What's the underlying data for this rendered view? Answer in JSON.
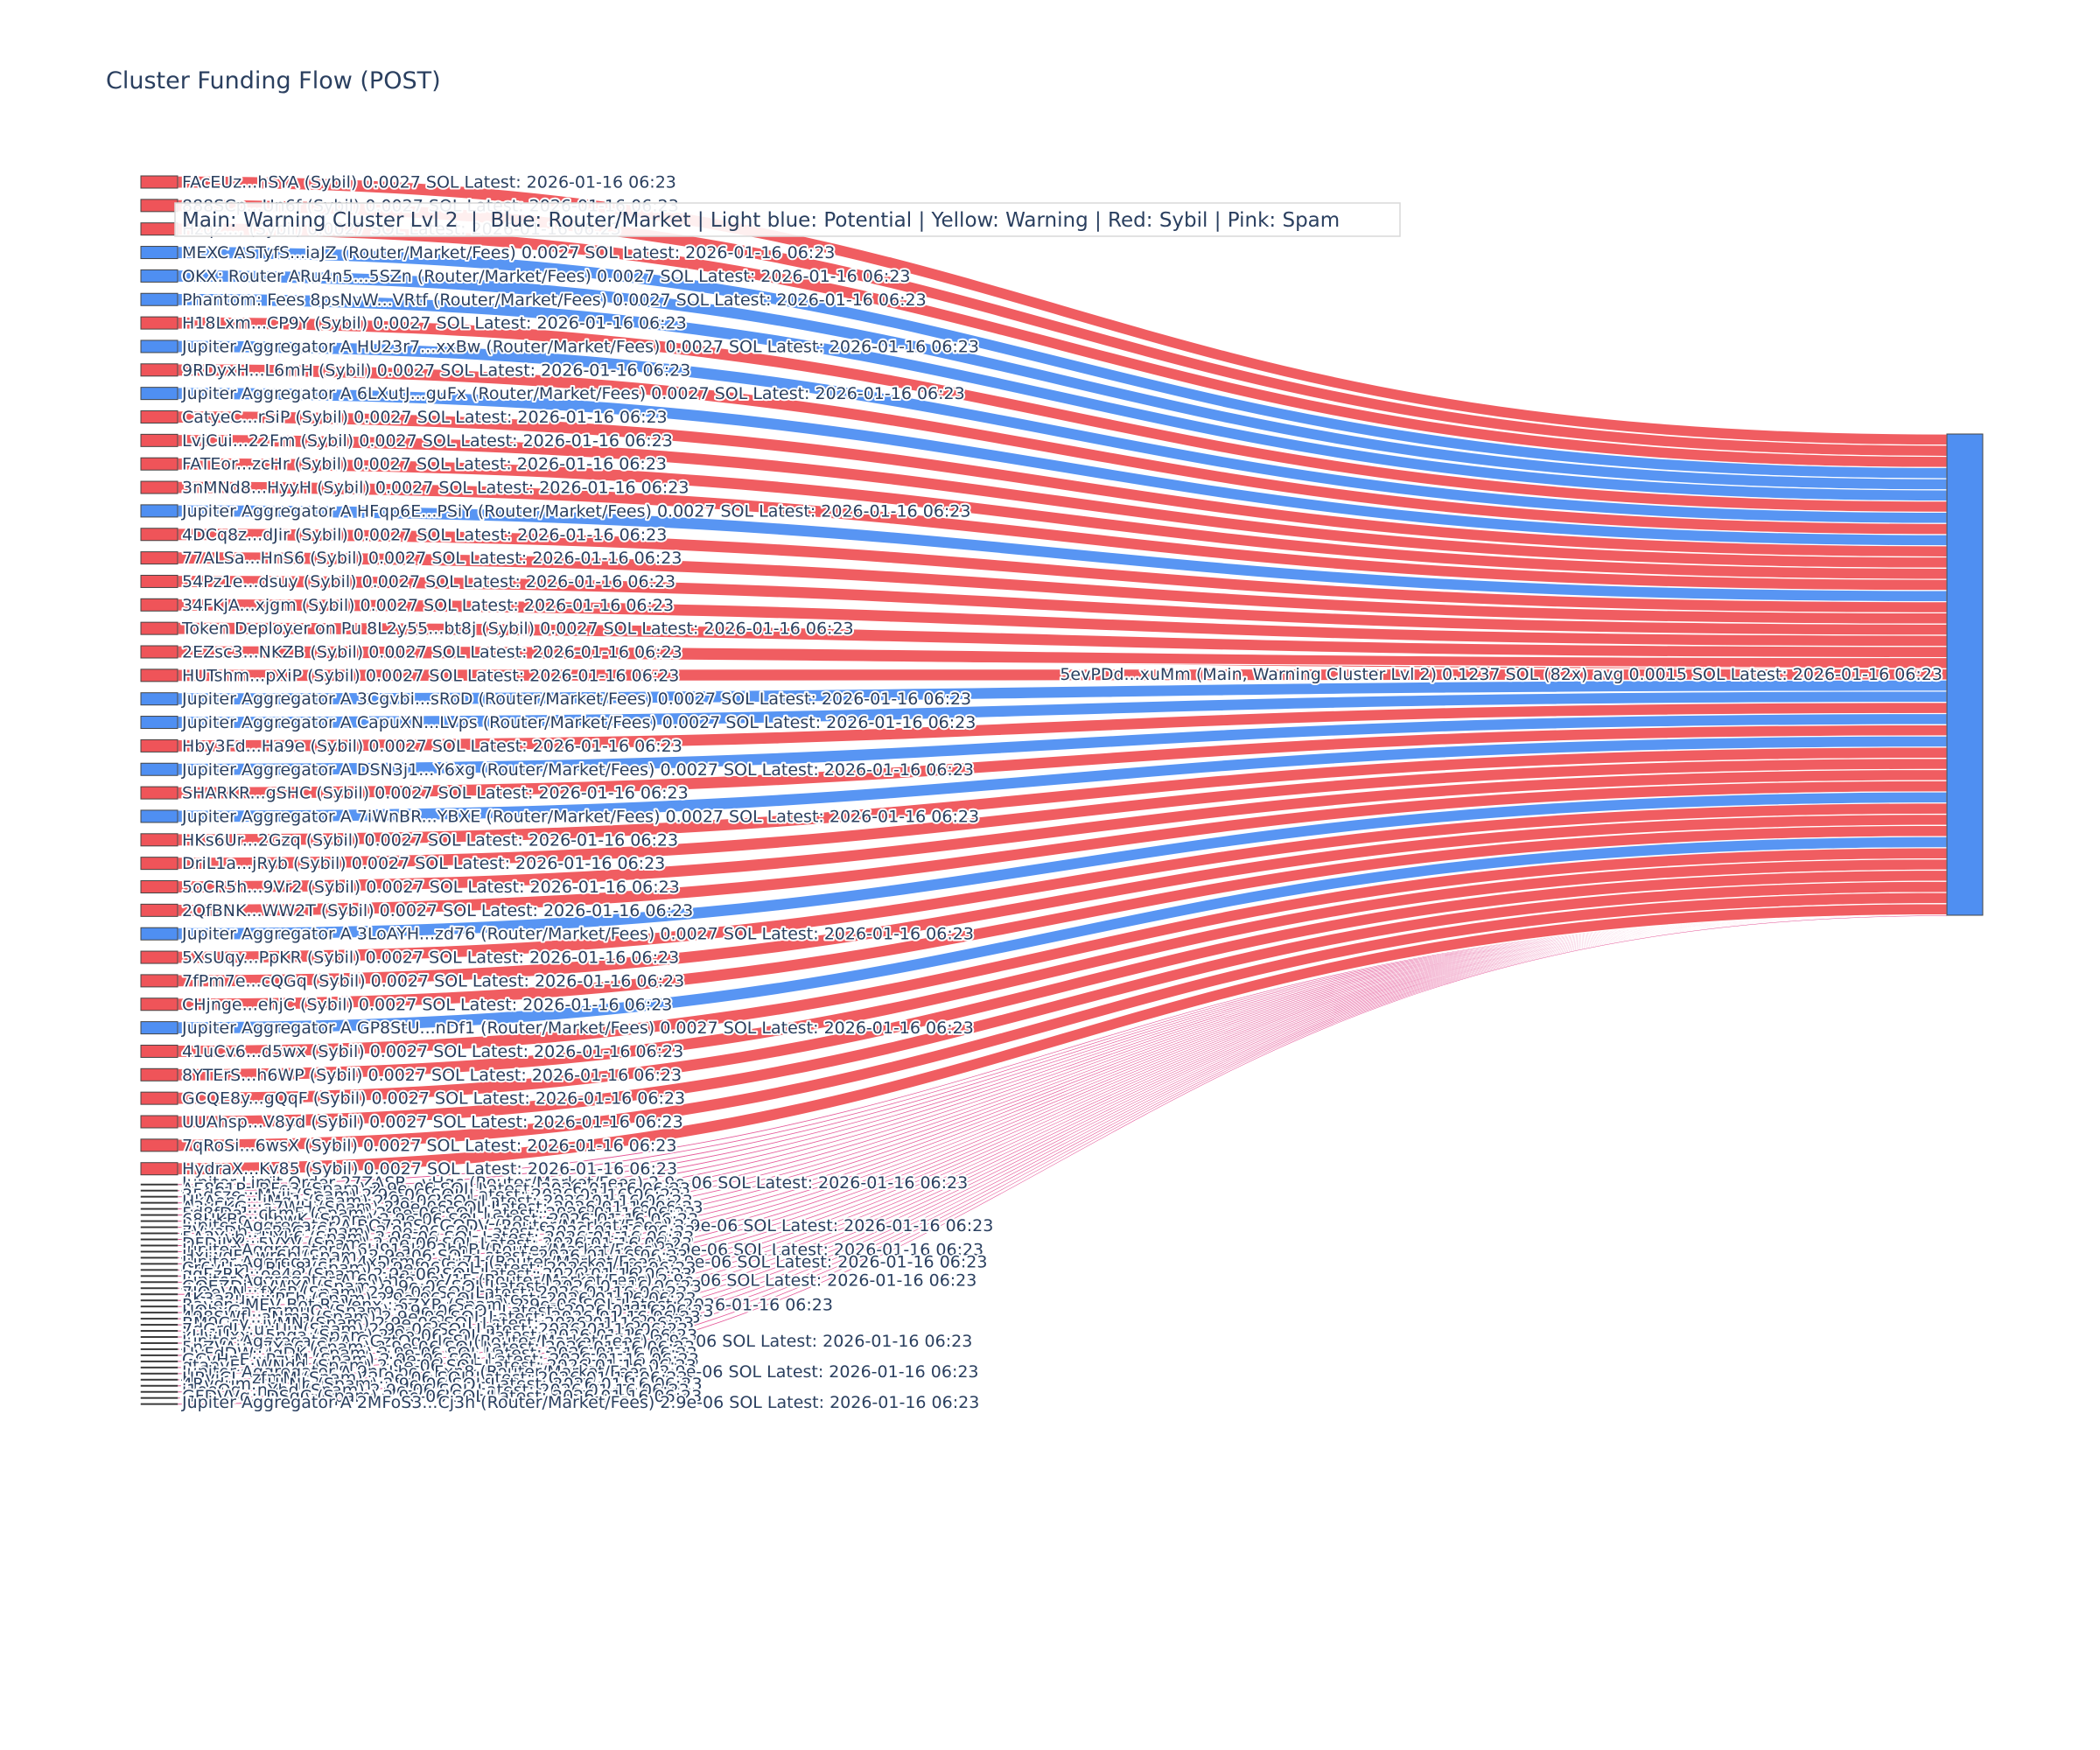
{
  "chart_data": {
    "type": "sankey",
    "title": "Cluster Funding Flow (POST)",
    "legend_note": "Main: Warning Cluster Lvl 2  |  Blue: Router/Market | Light blue: Potential | Yellow: Warning | Red: Sybil | Pink: Spam",
    "colors": {
      "sybil": "#ef5459",
      "router": "#4f8ff2",
      "spam": "#e0408a",
      "main": "#4f8ff2"
    },
    "target": {
      "label": "5evPDd...xuMm (Main, Warning Cluster Lvl 2) 0.1237 SOL (82x) avg 0.0015 SOL Latest: 2026-01-16 06:23",
      "value": 0.1237,
      "transfers": 82
    },
    "sources": [
      {
        "label": "FAcEUz...hSYA (Sybil) 0.0027 SOL Latest: 2026-01-16 06:23",
        "type": "sybil",
        "value": 0.0027
      },
      {
        "label": "888SCp...Un6f (Sybil) 0.0027 SOL Latest: 2026-01-16 06:23",
        "type": "sybil",
        "value": 0.0027
      },
      {
        "label": "Hzqz..., (Sybil) 0.0027 SOL Latest: 2026-01-16 06:23",
        "type": "sybil",
        "value": 0.0027
      },
      {
        "label": "MEXC ASTyfS...iaJZ (Router/Market/Fees) 0.0027 SOL Latest: 2026-01-16 06:23",
        "type": "router",
        "value": 0.0027
      },
      {
        "label": "OKX: Router ARu4n5...5SZn (Router/Market/Fees) 0.0027 SOL Latest: 2026-01-16 06:23",
        "type": "router",
        "value": 0.0027
      },
      {
        "label": "Phantom: Fees 8psNvW...VRtf (Router/Market/Fees) 0.0027 SOL Latest: 2026-01-16 06:23",
        "type": "router",
        "value": 0.0027
      },
      {
        "label": "H18Lxm...CP9Y (Sybil) 0.0027 SOL Latest: 2026-01-16 06:23",
        "type": "sybil",
        "value": 0.0027
      },
      {
        "label": "Jupiter Aggregator A HU23r7...xxBw (Router/Market/Fees) 0.0027 SOL Latest: 2026-01-16 06:23",
        "type": "router",
        "value": 0.0027
      },
      {
        "label": "9RDyxH...L6mH (Sybil) 0.0027 SOL Latest: 2026-01-16 06:23",
        "type": "sybil",
        "value": 0.0027
      },
      {
        "label": "Jupiter Aggregator A 6LXutJ...guFx (Router/Market/Fees) 0.0027 SOL Latest: 2026-01-16 06:23",
        "type": "router",
        "value": 0.0027
      },
      {
        "label": "CatyeC...rSiP (Sybil) 0.0027 SOL Latest: 2026-01-16 06:23",
        "type": "sybil",
        "value": 0.0027
      },
      {
        "label": "LvjCui...22Fm (Sybil) 0.0027 SOL Latest: 2026-01-16 06:23",
        "type": "sybil",
        "value": 0.0027
      },
      {
        "label": "FATEor...zcHr (Sybil) 0.0027 SOL Latest: 2026-01-16 06:23",
        "type": "sybil",
        "value": 0.0027
      },
      {
        "label": "3nMNd8...HyyH (Sybil) 0.0027 SOL Latest: 2026-01-16 06:23",
        "type": "sybil",
        "value": 0.0027
      },
      {
        "label": "Jupiter Aggregator A HFqp6E...PSiY (Router/Market/Fees) 0.0027 SOL Latest: 2026-01-16 06:23",
        "type": "router",
        "value": 0.0027
      },
      {
        "label": "4DCq8z...dJir (Sybil) 0.0027 SOL Latest: 2026-01-16 06:23",
        "type": "sybil",
        "value": 0.0027
      },
      {
        "label": "77ALSa...HnS6 (Sybil) 0.0027 SOL Latest: 2026-01-16 06:23",
        "type": "sybil",
        "value": 0.0027
      },
      {
        "label": "54Pz1e...dsuy (Sybil) 0.0027 SOL Latest: 2026-01-16 06:23",
        "type": "sybil",
        "value": 0.0027
      },
      {
        "label": "34FKjA...xjgm (Sybil) 0.0027 SOL Latest: 2026-01-16 06:23",
        "type": "sybil",
        "value": 0.0027
      },
      {
        "label": "Token Deployer on Pu 8L2y55...bt8j (Sybil) 0.0027 SOL Latest: 2026-01-16 06:23",
        "type": "sybil",
        "value": 0.0027
      },
      {
        "label": "2EZsc3...NKZB (Sybil) 0.0027 SOL Latest: 2026-01-16 06:23",
        "type": "sybil",
        "value": 0.0027
      },
      {
        "label": "HUTshm...pXiP (Sybil) 0.0027 SOL Latest: 2026-01-16 06:23",
        "type": "sybil",
        "value": 0.0027
      },
      {
        "label": "Jupiter Aggregator A 3Cgvbi...sRoD (Router/Market/Fees) 0.0027 SOL Latest: 2026-01-16 06:23",
        "type": "router",
        "value": 0.0027
      },
      {
        "label": "Jupiter Aggregator A CapuXN...LVps (Router/Market/Fees) 0.0027 SOL Latest: 2026-01-16 06:23",
        "type": "router",
        "value": 0.0027
      },
      {
        "label": "Hby3Fd...Ha9e (Sybil) 0.0027 SOL Latest: 2026-01-16 06:23",
        "type": "sybil",
        "value": 0.0027
      },
      {
        "label": "Jupiter Aggregator A DSN3j1...Y6xg (Router/Market/Fees) 0.0027 SOL Latest: 2026-01-16 06:23",
        "type": "router",
        "value": 0.0027
      },
      {
        "label": "SHARKR...gSHC (Sybil) 0.0027 SOL Latest: 2026-01-16 06:23",
        "type": "sybil",
        "value": 0.0027
      },
      {
        "label": "Jupiter Aggregator A 7iWnBR...YBXE (Router/Market/Fees) 0.0027 SOL Latest: 2026-01-16 06:23",
        "type": "router",
        "value": 0.0027
      },
      {
        "label": "HKs6Ur...2Gzq (Sybil) 0.0027 SOL Latest: 2026-01-16 06:23",
        "type": "sybil",
        "value": 0.0027
      },
      {
        "label": "DriL1a...jRyb (Sybil) 0.0027 SOL Latest: 2026-01-16 06:23",
        "type": "sybil",
        "value": 0.0027
      },
      {
        "label": "5oCR5h...9Vr2 (Sybil) 0.0027 SOL Latest: 2026-01-16 06:23",
        "type": "sybil",
        "value": 0.0027
      },
      {
        "label": "2QfBNK...WW2T (Sybil) 0.0027 SOL Latest: 2026-01-16 06:23",
        "type": "sybil",
        "value": 0.0027
      },
      {
        "label": "Jupiter Aggregator A 3LoAYH...zd76 (Router/Market/Fees) 0.0027 SOL Latest: 2026-01-16 06:23",
        "type": "router",
        "value": 0.0027
      },
      {
        "label": "5XsUqy...PpKR (Sybil) 0.0027 SOL Latest: 2026-01-16 06:23",
        "type": "sybil",
        "value": 0.0027
      },
      {
        "label": "7fPm7e...cQGq (Sybil) 0.0027 SOL Latest: 2026-01-16 06:23",
        "type": "sybil",
        "value": 0.0027
      },
      {
        "label": "CHjnge...ehjC (Sybil) 0.0027 SOL Latest: 2026-01-16 06:23",
        "type": "sybil",
        "value": 0.0027
      },
      {
        "label": "Jupiter Aggregator A GP8StU...nDf1 (Router/Market/Fees) 0.0027 SOL Latest: 2026-01-16 06:23",
        "type": "router",
        "value": 0.0027
      },
      {
        "label": "41uCv6...d5wx (Sybil) 0.0027 SOL Latest: 2026-01-16 06:23",
        "type": "sybil",
        "value": 0.0027
      },
      {
        "label": "8YTErS...h6WP (Sybil) 0.0027 SOL Latest: 2026-01-16 06:23",
        "type": "sybil",
        "value": 0.0027
      },
      {
        "label": "GCQE8y...gQqF (Sybil) 0.0027 SOL Latest: 2026-01-16 06:23",
        "type": "sybil",
        "value": 0.0027
      },
      {
        "label": "UUAhsp...V8yd (Sybil) 0.0027 SOL Latest: 2026-01-16 06:23",
        "type": "sybil",
        "value": 0.0027
      },
      {
        "label": "7qRoSi...6wsX (Sybil) 0.0027 SOL Latest: 2026-01-16 06:23",
        "type": "sybil",
        "value": 0.0027
      },
      {
        "label": "HydraX...Ky85 (Sybil) 0.0027 SOL Latest: 2026-01-16 06:23",
        "type": "sybil",
        "value": 0.0027
      },
      {
        "label": "Jupiter Limit Order  27ZASR...vHgc (Router/Market/Fees) 2.9e-06 SOL Latest: 2026-01-16 06:23",
        "type": "spam",
        "value": 2.9e-06
      },
      {
        "label": "AE861P...RFe3 (Spam) 2.9e-06 SOL Latest: 2026-01-16 06:23",
        "type": "spam",
        "value": 2.9e-06
      },
      {
        "label": "35dsze...Mvjj (Spam) 2.9e-06 SOL Latest: 2026-01-16 06:23",
        "type": "spam",
        "value": 2.9e-06
      },
      {
        "label": "HkAop6...jMq1 (Spam) 2.9e-06 SOL Latest: 2026-01-16 06:23",
        "type": "spam",
        "value": 2.9e-06
      },
      {
        "label": "A3yFKG...a7WH (Spam) 2.9e-06 SOL Latest: 2026-01-16 06:23",
        "type": "spam",
        "value": 2.9e-06
      },
      {
        "label": "5d8fDa...cbm5 (Spam) 2.9e-06 SOL Latest: 2026-01-16 06:23",
        "type": "spam",
        "value": 2.9e-06
      },
      {
        "label": "68HKBo...LbwK (Spam) 2.9e-06 SOL Latest: 2026-01-16 06:23",
        "type": "spam",
        "value": 2.9e-06
      },
      {
        "label": "Jupiter Aggregator A BQ72nS...GQDV (Router/Market/Fees) 2.9e-06 SOL Latest: 2026-01-16 06:23",
        "type": "spam",
        "value": 2.9e-06
      },
      {
        "label": "7VvoDb...sPnG (Spam) 2.9e-06 SOL Latest: 2026-01-16 06:23",
        "type": "spam",
        "value": 2.9e-06
      },
      {
        "label": "5A2Yvb...HYk6 (Spam) 2.9e-06 SOL Latest: 2026-01-16 06:23",
        "type": "spam",
        "value": 2.9e-06
      },
      {
        "label": "DFDjLX...5VYV (Spam) 2.9e-06 SOL Latest: 2026-01-16 06:23",
        "type": "spam",
        "value": 2.9e-06
      },
      {
        "label": "Jupiter Aggregator A 6U91ak...2hbB (Router/Market/Fees) 2.9e-06 SOL Latest: 2026-01-16 06:23",
        "type": "spam",
        "value": 2.9e-06
      },
      {
        "label": "HxjwdF...wr6b (Spam) 2.9e-06 SOL Latest: 2026-01-16 06:23",
        "type": "spam",
        "value": 2.9e-06
      },
      {
        "label": "Jupiter Aggregator A 4xDsme...du71 (Router/Market/Fees) 2.9e-06 SOL Latest: 2026-01-16 06:23",
        "type": "spam",
        "value": 2.9e-06
      },
      {
        "label": "Cr6vUm...RLL8 (Spam) 2.9e-06 SOL Latest: 2026-01-16 06:23",
        "type": "spam",
        "value": 2.9e-06
      },
      {
        "label": "qqEzRK...oe4e (Spam) 2.9e-06 SOL Latest: 2026-01-16 06:23",
        "type": "spam",
        "value": 2.9e-06
      },
      {
        "label": "Jupiter Aggregator A 69yhfo...aV15 (Router/Market/Fees) 2.9e-06 SOL Latest: 2026-01-16 06:23",
        "type": "spam",
        "value": 2.9e-06
      },
      {
        "label": "GQEZDi...VWYA (Spam) 2.9e-06 SOL Latest: 2026-01-16 06:23",
        "type": "spam",
        "value": 2.9e-06
      },
      {
        "label": "7JQeVN...fXcP (Spam) 2.9e-06 SOL Latest: 2026-01-16 06:23",
        "type": "spam",
        "value": 2.9e-06
      },
      {
        "label": "4K3a2u...wPEh (Spam) 2.9e-06 SOL Latest: 2026-01-16 06:23",
        "type": "spam",
        "value": 2.9e-06
      },
      {
        "label": "Raven: MEV Bot RaVenx...6ZXR (Spam) 2.9e-06 SOL Latest: 2026-01-16 06:23",
        "type": "spam",
        "value": 2.9e-06
      },
      {
        "label": "HQbxGn...mmuQ (Spam) 2.9e-06 SOL Latest: 2026-01-16 06:23",
        "type": "spam",
        "value": 2.9e-06
      },
      {
        "label": "498SWf...aNma (Spam) 2.9e-06 SOL Latest: 2026-01-16 06:23",
        "type": "spam",
        "value": 2.9e-06
      },
      {
        "label": "BM9Ccy...ivMN (Spam) 2.9e-06 SOL Latest: 2026-01-16 06:23",
        "type": "spam",
        "value": 2.9e-06
      },
      {
        "label": "7dGrdJ...uuUu (Spam) 2.9e-06 SOL Latest: 2026-01-16 06:23",
        "type": "spam",
        "value": 2.9e-06
      },
      {
        "label": "xUwUxx...5nga (Spam) 2.9e-06 SOL Latest: 2026-01-16 06:23",
        "type": "spam",
        "value": 2.9e-06
      },
      {
        "label": "Jupiter Aggregator A GGztQq...JqSJ (Router/Market/Fees) 2.9e-06 SOL Latest: 2026-01-16 06:23",
        "type": "spam",
        "value": 2.9e-06
      },
      {
        "label": "5nZVAu...7Yn6 (Spam) 2.9e-06 SOL Latest: 2026-01-16 06:23",
        "type": "spam",
        "value": 2.9e-06
      },
      {
        "label": "HvFdDW...JqDK (Spam) 2.9e-06 SOL Latest: 2026-01-16 06:23",
        "type": "spam",
        "value": 2.9e-06
      },
      {
        "label": "GCyHnE...PzvM (Spam) 2.9e-06 SOL Latest: 2026-01-16 06:23",
        "type": "spam",
        "value": 2.9e-06
      },
      {
        "label": "qtanvE...WNdd (Spam) 2.9e-06 SOL Latest: 2026-01-16 06:23",
        "type": "spam",
        "value": 2.9e-06
      },
      {
        "label": "Jupiter Aggregator A 9nnLbo...Fxn8 (Router/Market/Fees) 2.9e-06 SOL Latest: 2026-01-16 06:23",
        "type": "spam",
        "value": 2.9e-06
      },
      {
        "label": "HRyjCJ...zfmM (Spam) 2.9e-06 SOL Latest: 2026-01-16 06:23",
        "type": "spam",
        "value": 2.9e-06
      },
      {
        "label": "4Rvdum...HLNb (Spam) 2.9e-06 SOL Latest: 2026-01-16 06:23",
        "type": "spam",
        "value": 2.9e-06
      },
      {
        "label": "j1oeQg...nYbd (Spam) 2.9e-06 SOL Latest: 2026-01-16 06:23",
        "type": "spam",
        "value": 2.9e-06
      },
      {
        "label": "GFDVVq...DSqC (Spam) 2.9e-06 SOL Latest: 2026-01-16 06:23",
        "type": "spam",
        "value": 2.9e-06
      },
      {
        "label": "Jupiter Aggregator A 2MFoS3...Cj3h (Router/Market/Fees) 2.9e-06 SOL Latest: 2026-01-16 06:23",
        "type": "spam",
        "value": 2.9e-06
      }
    ]
  }
}
